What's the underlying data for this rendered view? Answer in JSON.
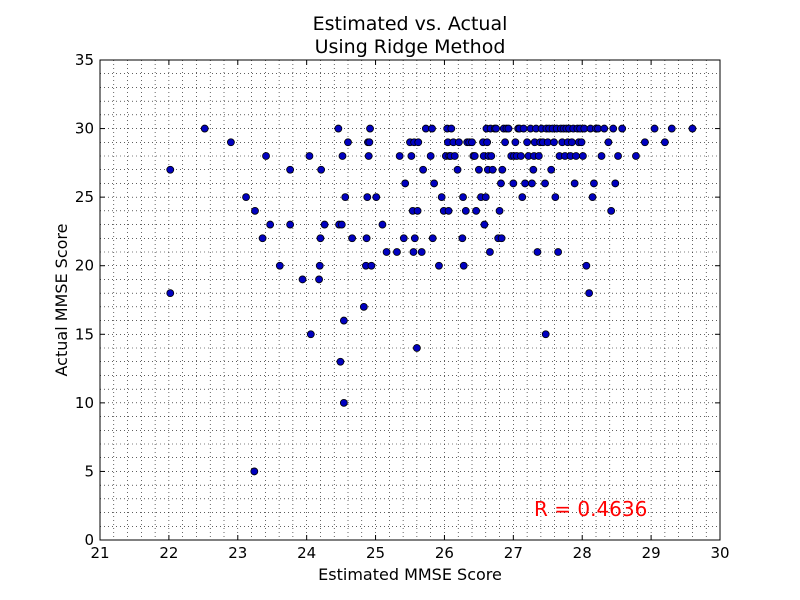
{
  "chart_data": {
    "type": "scatter",
    "title_line1": "Estimated vs. Actual",
    "title_line2": "Using Ridge Method",
    "xlabel": "Estimated MMSE Score",
    "ylabel": "Actual MMSE Score",
    "xlim": [
      21,
      30
    ],
    "ylim": [
      0,
      35
    ],
    "xticks": [
      "21",
      "22",
      "23",
      "24",
      "25",
      "26",
      "27",
      "28",
      "29",
      "30"
    ],
    "yticks": [
      "0",
      "5",
      "10",
      "15",
      "20",
      "25",
      "30",
      "35"
    ],
    "grid": true,
    "annotation": "R = 0.4636",
    "colors": {
      "marker": "#0000bf",
      "annotation": "#ff0000",
      "axes": "#000000"
    },
    "points": [
      [
        22.02,
        27
      ],
      [
        22.02,
        18
      ],
      [
        22.52,
        30
      ],
      [
        22.9,
        29
      ],
      [
        23.12,
        25
      ],
      [
        23.25,
        24
      ],
      [
        23.36,
        22
      ],
      [
        23.41,
        28
      ],
      [
        23.47,
        23
      ],
      [
        23.61,
        20
      ],
      [
        23.76,
        27
      ],
      [
        23.76,
        23
      ],
      [
        23.94,
        19
      ],
      [
        24.04,
        28
      ],
      [
        24.06,
        15
      ],
      [
        24.18,
        19
      ],
      [
        24.19,
        20
      ],
      [
        24.2,
        22
      ],
      [
        24.21,
        27
      ],
      [
        24.26,
        23
      ],
      [
        23.24,
        5
      ],
      [
        24.46,
        30
      ],
      [
        24.47,
        23
      ],
      [
        24.49,
        13
      ],
      [
        24.51,
        23
      ],
      [
        24.52,
        28
      ],
      [
        24.54,
        16
      ],
      [
        24.54,
        10
      ],
      [
        24.56,
        25
      ],
      [
        24.6,
        29
      ],
      [
        24.66,
        22
      ],
      [
        24.83,
        17
      ],
      [
        24.86,
        20
      ],
      [
        24.87,
        22
      ],
      [
        24.88,
        25
      ],
      [
        24.89,
        29
      ],
      [
        24.9,
        28
      ],
      [
        24.91,
        29
      ],
      [
        24.92,
        30
      ],
      [
        24.94,
        20
      ],
      [
        25.01,
        25
      ],
      [
        25.1,
        23
      ],
      [
        25.16,
        21
      ],
      [
        25.31,
        21
      ],
      [
        25.35,
        28
      ],
      [
        25.41,
        22
      ],
      [
        25.43,
        26
      ],
      [
        25.5,
        29
      ],
      [
        25.52,
        28
      ],
      [
        25.54,
        24
      ],
      [
        25.55,
        21
      ],
      [
        25.56,
        29
      ],
      [
        25.57,
        22
      ],
      [
        25.6,
        14
      ],
      [
        25.61,
        24
      ],
      [
        25.62,
        29
      ],
      [
        25.67,
        21
      ],
      [
        25.69,
        27
      ],
      [
        25.73,
        30
      ],
      [
        25.8,
        28
      ],
      [
        25.82,
        30
      ],
      [
        25.83,
        22
      ],
      [
        25.85,
        26
      ],
      [
        25.92,
        20
      ],
      [
        25.96,
        25
      ],
      [
        25.99,
        24
      ],
      [
        26.02,
        28
      ],
      [
        26.04,
        30
      ],
      [
        26.05,
        29
      ],
      [
        26.06,
        24
      ],
      [
        26.07,
        28
      ],
      [
        26.09,
        28
      ],
      [
        26.1,
        30
      ],
      [
        26.13,
        29
      ],
      [
        26.15,
        28
      ],
      [
        26.19,
        27
      ],
      [
        26.21,
        29
      ],
      [
        26.26,
        22
      ],
      [
        26.27,
        25
      ],
      [
        26.28,
        20
      ],
      [
        26.31,
        24
      ],
      [
        26.33,
        29
      ],
      [
        26.36,
        29
      ],
      [
        26.4,
        29
      ],
      [
        26.42,
        28
      ],
      [
        26.44,
        28
      ],
      [
        26.46,
        24
      ],
      [
        26.5,
        27
      ],
      [
        26.53,
        25
      ],
      [
        26.56,
        29
      ],
      [
        26.57,
        28
      ],
      [
        26.58,
        23
      ],
      [
        26.6,
        25
      ],
      [
        26.61,
        30
      ],
      [
        26.62,
        29
      ],
      [
        26.63,
        27
      ],
      [
        26.64,
        28
      ],
      [
        26.66,
        21
      ],
      [
        26.67,
        30
      ],
      [
        26.68,
        28
      ],
      [
        26.7,
        27
      ],
      [
        26.73,
        30
      ],
      [
        26.75,
        30
      ],
      [
        26.78,
        22
      ],
      [
        26.8,
        24
      ],
      [
        26.82,
        26
      ],
      [
        26.83,
        22
      ],
      [
        26.84,
        27
      ],
      [
        26.86,
        30
      ],
      [
        26.88,
        29
      ],
      [
        26.9,
        30
      ],
      [
        26.93,
        30
      ],
      [
        26.97,
        28
      ],
      [
        27.0,
        26
      ],
      [
        27.01,
        28
      ],
      [
        27.03,
        29
      ],
      [
        27.05,
        28
      ],
      [
        27.07,
        30
      ],
      [
        27.09,
        30
      ],
      [
        27.11,
        28
      ],
      [
        27.13,
        25
      ],
      [
        27.15,
        30
      ],
      [
        27.17,
        26
      ],
      [
        27.2,
        29
      ],
      [
        27.22,
        28
      ],
      [
        27.25,
        30
      ],
      [
        27.27,
        26
      ],
      [
        27.29,
        27
      ],
      [
        27.3,
        28
      ],
      [
        27.31,
        29
      ],
      [
        27.33,
        30
      ],
      [
        27.35,
        21
      ],
      [
        27.37,
        28
      ],
      [
        27.39,
        29
      ],
      [
        27.41,
        30
      ],
      [
        27.43,
        29
      ],
      [
        27.46,
        26
      ],
      [
        27.47,
        15
      ],
      [
        27.48,
        30
      ],
      [
        27.5,
        29
      ],
      [
        27.52,
        30
      ],
      [
        27.55,
        27
      ],
      [
        27.57,
        30
      ],
      [
        27.59,
        29
      ],
      [
        27.61,
        25
      ],
      [
        27.63,
        30
      ],
      [
        27.65,
        21
      ],
      [
        27.67,
        28
      ],
      [
        27.69,
        30
      ],
      [
        27.71,
        29
      ],
      [
        27.73,
        30
      ],
      [
        27.75,
        28
      ],
      [
        27.77,
        30
      ],
      [
        27.79,
        29
      ],
      [
        27.81,
        30
      ],
      [
        27.83,
        28
      ],
      [
        27.85,
        29
      ],
      [
        27.87,
        30
      ],
      [
        27.89,
        26
      ],
      [
        27.91,
        28
      ],
      [
        27.93,
        30
      ],
      [
        27.95,
        29
      ],
      [
        27.97,
        30
      ],
      [
        27.99,
        29
      ],
      [
        28.01,
        28
      ],
      [
        28.03,
        30
      ],
      [
        28.06,
        20
      ],
      [
        28.1,
        18
      ],
      [
        28.12,
        30
      ],
      [
        28.15,
        25
      ],
      [
        28.17,
        26
      ],
      [
        28.2,
        30
      ],
      [
        28.23,
        30
      ],
      [
        28.28,
        28
      ],
      [
        28.32,
        30
      ],
      [
        28.38,
        29
      ],
      [
        28.42,
        24
      ],
      [
        28.45,
        30
      ],
      [
        28.48,
        26
      ],
      [
        28.52,
        28
      ],
      [
        28.58,
        30
      ],
      [
        28.78,
        28
      ],
      [
        28.91,
        29
      ],
      [
        29.05,
        30
      ],
      [
        29.2,
        29
      ],
      [
        29.3,
        30
      ],
      [
        29.6,
        30
      ]
    ]
  }
}
